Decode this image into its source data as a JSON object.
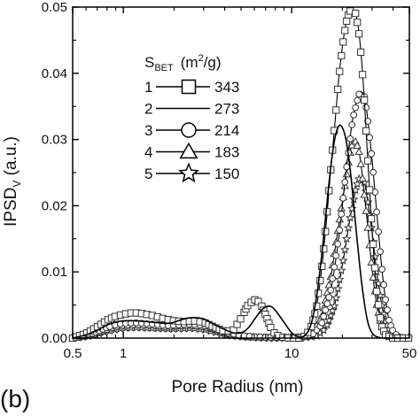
{
  "chart_data": {
    "type": "line",
    "panel_label": "(b)",
    "xlabel": "Pore  Radius  (nm)",
    "ylabel": {
      "main": "IPSD",
      "sub": "V",
      "unit": " (a.u.)"
    },
    "xscale": "log",
    "xlim": [
      0.5,
      50
    ],
    "ylim": [
      0,
      0.05
    ],
    "x_tick_labels": [
      "0.5",
      "1",
      "10",
      "50"
    ],
    "x_ticks": [
      0.5,
      1,
      10,
      50
    ],
    "y_ticks": [
      0.0,
      0.01,
      0.02,
      0.03,
      0.04,
      0.05
    ],
    "y_tick_labels": [
      "0.00",
      "0.01",
      "0.02",
      "0.03",
      "0.04",
      "0.05"
    ],
    "legend": {
      "title_main": "S",
      "title_sub": "BET",
      "title_unit": "(m",
      "title_sup": "2",
      "title_end": "/g)",
      "placement": "upper-middle"
    },
    "series": [
      {
        "id": "1",
        "value": "343",
        "marker": "square",
        "points": [
          [
            0.5,
            0
          ],
          [
            0.6,
            0.0007
          ],
          [
            0.7,
            0.0017
          ],
          [
            0.8,
            0.0027
          ],
          [
            0.9,
            0.0033
          ],
          [
            1.0,
            0.0036
          ],
          [
            1.1,
            0.0038
          ],
          [
            1.2,
            0.0038
          ],
          [
            1.3,
            0.0037
          ],
          [
            1.5,
            0.0034
          ],
          [
            1.7,
            0.003
          ],
          [
            2.0,
            0.0026
          ],
          [
            2.3,
            0.0025
          ],
          [
            2.6,
            0.0026
          ],
          [
            3.0,
            0.0024
          ],
          [
            3.5,
            0.0016
          ],
          [
            4.0,
            0.001
          ],
          [
            4.5,
            0.0012
          ],
          [
            5.0,
            0.003
          ],
          [
            5.5,
            0.005
          ],
          [
            6.0,
            0.0058
          ],
          [
            6.5,
            0.0054
          ],
          [
            7.0,
            0.0035
          ],
          [
            7.5,
            0.0016
          ],
          [
            8.0,
            0.0005
          ],
          [
            9.0,
            0.0001
          ],
          [
            10,
            0
          ],
          [
            11,
            0
          ],
          [
            12,
            0.0003
          ],
          [
            13,
            0.0015
          ],
          [
            14,
            0.0045
          ],
          [
            15,
            0.01
          ],
          [
            16,
            0.017
          ],
          [
            17,
            0.025
          ],
          [
            18,
            0.032
          ],
          [
            19,
            0.039
          ],
          [
            20,
            0.044
          ],
          [
            21,
            0.0475
          ],
          [
            22,
            0.0493
          ],
          [
            23,
            0.0497
          ],
          [
            24,
            0.049
          ],
          [
            25,
            0.0465
          ],
          [
            26,
            0.042
          ],
          [
            27,
            0.036
          ],
          [
            28,
            0.029
          ],
          [
            30,
            0.0165
          ],
          [
            32,
            0.007
          ],
          [
            34,
            0.002
          ],
          [
            36,
            0.0005
          ],
          [
            40,
            0
          ],
          [
            45,
            0
          ]
        ]
      },
      {
        "id": "2",
        "value": "273",
        "marker": "none",
        "points": [
          [
            0.5,
            0
          ],
          [
            0.6,
            0.0005
          ],
          [
            0.7,
            0.0012
          ],
          [
            0.8,
            0.002
          ],
          [
            0.9,
            0.0024
          ],
          [
            1.0,
            0.0026
          ],
          [
            1.2,
            0.0026
          ],
          [
            1.5,
            0.0024
          ],
          [
            1.8,
            0.0022
          ],
          [
            2.0,
            0.0024
          ],
          [
            2.3,
            0.0029
          ],
          [
            2.6,
            0.0031
          ],
          [
            3.0,
            0.0029
          ],
          [
            3.5,
            0.002
          ],
          [
            4.0,
            0.0013
          ],
          [
            4.5,
            0.0008
          ],
          [
            5.0,
            0.0008
          ],
          [
            5.5,
            0.0015
          ],
          [
            6.0,
            0.0028
          ],
          [
            6.5,
            0.004
          ],
          [
            7.0,
            0.0047
          ],
          [
            7.5,
            0.0048
          ],
          [
            8.0,
            0.0042
          ],
          [
            9.0,
            0.0024
          ],
          [
            10,
            0.0008
          ],
          [
            11,
            0.0002
          ],
          [
            12,
            0.0004
          ],
          [
            13,
            0.002
          ],
          [
            14,
            0.006
          ],
          [
            15,
            0.012
          ],
          [
            16,
            0.019
          ],
          [
            17,
            0.0255
          ],
          [
            18,
            0.03
          ],
          [
            19,
            0.032
          ],
          [
            20,
            0.0318
          ],
          [
            21,
            0.03
          ],
          [
            22,
            0.0265
          ],
          [
            23,
            0.022
          ],
          [
            24,
            0.017
          ],
          [
            26,
            0.0085
          ],
          [
            28,
            0.003
          ],
          [
            30,
            0.0008
          ],
          [
            33,
            0.0001
          ],
          [
            38,
            0
          ],
          [
            45,
            0
          ]
        ]
      },
      {
        "id": "3",
        "value": "214",
        "marker": "circle",
        "points": [
          [
            0.5,
            0
          ],
          [
            0.6,
            0.0004
          ],
          [
            0.7,
            0.001
          ],
          [
            0.8,
            0.0016
          ],
          [
            0.9,
            0.002
          ],
          [
            1.0,
            0.0022
          ],
          [
            1.2,
            0.0023
          ],
          [
            1.5,
            0.0021
          ],
          [
            1.8,
            0.0019
          ],
          [
            2.1,
            0.002
          ],
          [
            2.5,
            0.0021
          ],
          [
            3.0,
            0.0019
          ],
          [
            3.5,
            0.0014
          ],
          [
            4.0,
            0.0009
          ],
          [
            5.0,
            0.0004
          ],
          [
            6.0,
            0.0002
          ],
          [
            8.0,
            0.0001
          ],
          [
            10,
            0.0001
          ],
          [
            13,
            0.0003
          ],
          [
            15,
            0.002
          ],
          [
            17,
            0.007
          ],
          [
            19,
            0.015
          ],
          [
            21,
            0.025
          ],
          [
            23,
            0.033
          ],
          [
            25,
            0.0368
          ],
          [
            26,
            0.0372
          ],
          [
            27,
            0.0365
          ],
          [
            28,
            0.034
          ],
          [
            30,
            0.027
          ],
          [
            32,
            0.019
          ],
          [
            34,
            0.0115
          ],
          [
            36,
            0.006
          ],
          [
            38,
            0.0025
          ],
          [
            40,
            0.001
          ],
          [
            43,
            0.0002
          ],
          [
            47,
            0
          ]
        ]
      },
      {
        "id": "4",
        "value": "183",
        "marker": "triangle",
        "points": [
          [
            0.5,
            0
          ],
          [
            0.6,
            0.0003
          ],
          [
            0.7,
            0.0008
          ],
          [
            0.8,
            0.0013
          ],
          [
            0.9,
            0.0017
          ],
          [
            1.0,
            0.0019
          ],
          [
            1.2,
            0.002
          ],
          [
            1.5,
            0.0019
          ],
          [
            1.8,
            0.0017
          ],
          [
            2.1,
            0.0018
          ],
          [
            2.5,
            0.0019
          ],
          [
            3.0,
            0.0017
          ],
          [
            3.5,
            0.0013
          ],
          [
            4.0,
            0.0008
          ],
          [
            5.0,
            0.0003
          ],
          [
            6.0,
            0.0001
          ],
          [
            8.0,
            0.0001
          ],
          [
            11,
            0.0001
          ],
          [
            13,
            0.0005
          ],
          [
            15,
            0.003
          ],
          [
            17,
            0.009
          ],
          [
            19,
            0.017
          ],
          [
            21,
            0.024
          ],
          [
            22,
            0.0275
          ],
          [
            23,
            0.0295
          ],
          [
            24,
            0.0297
          ],
          [
            25,
            0.0285
          ],
          [
            26,
            0.0255
          ],
          [
            28,
            0.018
          ],
          [
            30,
            0.0105
          ],
          [
            32,
            0.005
          ],
          [
            34,
            0.002
          ],
          [
            37,
            0.0004
          ],
          [
            42,
            0
          ]
        ]
      },
      {
        "id": "5",
        "value": "150",
        "marker": "star",
        "points": [
          [
            0.5,
            0
          ],
          [
            0.6,
            0.0002
          ],
          [
            0.7,
            0.0006
          ],
          [
            0.8,
            0.001
          ],
          [
            0.9,
            0.0013
          ],
          [
            1.0,
            0.0015
          ],
          [
            1.2,
            0.0016
          ],
          [
            1.5,
            0.0015
          ],
          [
            1.8,
            0.0014
          ],
          [
            2.1,
            0.0014
          ],
          [
            2.5,
            0.0015
          ],
          [
            3.0,
            0.0013
          ],
          [
            3.5,
            0.0009
          ],
          [
            4.0,
            0.0005
          ],
          [
            5.0,
            0.0002
          ],
          [
            7.0,
            0
          ],
          [
            11,
            0
          ],
          [
            14,
            0.0003
          ],
          [
            16,
            0.0015
          ],
          [
            18,
            0.005
          ],
          [
            20,
            0.011
          ],
          [
            22,
            0.0175
          ],
          [
            24,
            0.0225
          ],
          [
            25,
            0.024
          ],
          [
            26,
            0.0242
          ],
          [
            27,
            0.0235
          ],
          [
            28,
            0.0215
          ],
          [
            30,
            0.016
          ],
          [
            32,
            0.01
          ],
          [
            34,
            0.0055
          ],
          [
            36,
            0.0025
          ],
          [
            39,
            0.0007
          ],
          [
            44,
            0
          ]
        ]
      }
    ]
  }
}
